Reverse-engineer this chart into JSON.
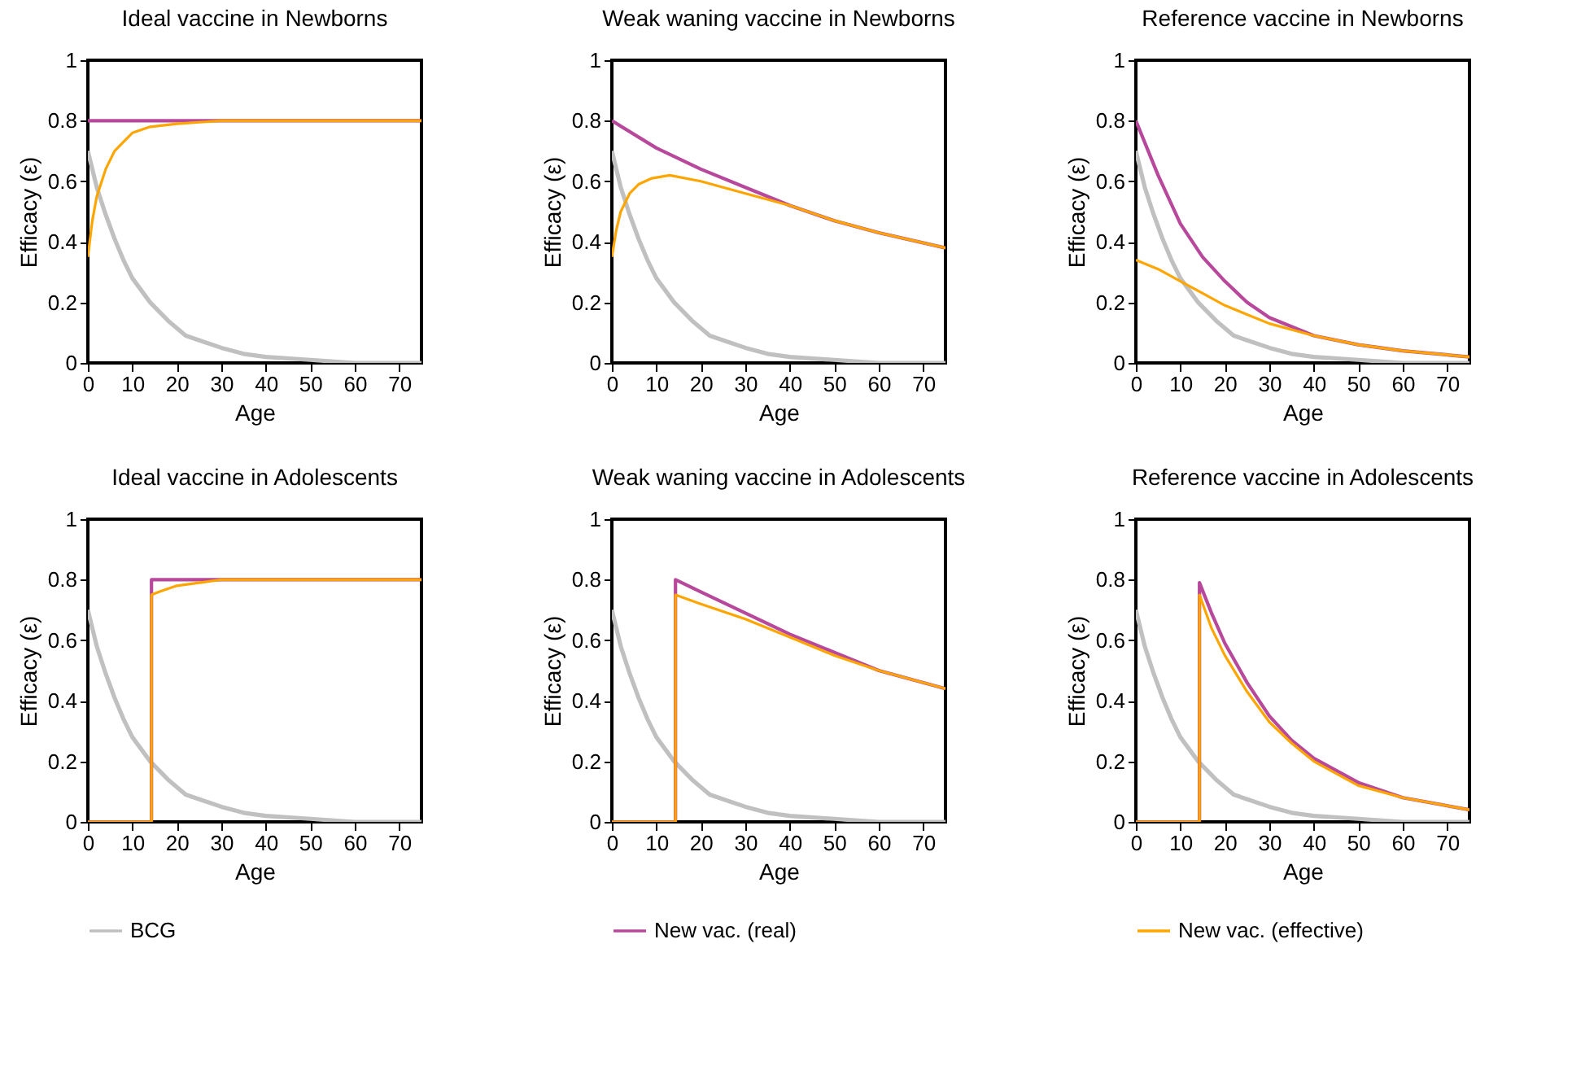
{
  "chart_data": [
    {
      "type": "line",
      "title": "Ideal vaccine in Newborns",
      "xlabel": "Age",
      "ylabel": "Efficacy (ε)",
      "xlim": [
        0,
        75
      ],
      "xticks": [
        0,
        10,
        20,
        30,
        40,
        50,
        60,
        70
      ],
      "ylim": [
        0,
        1
      ],
      "yticks": [
        0,
        0.2,
        0.4,
        0.6,
        0.8,
        1
      ],
      "series": [
        {
          "color": "#c0c0c0",
          "x": [
            0,
            2,
            4,
            6,
            8,
            10,
            14,
            18,
            22,
            26,
            30,
            35,
            40,
            50,
            60,
            75
          ],
          "values": [
            0.7,
            0.58,
            0.49,
            0.41,
            0.34,
            0.28,
            0.2,
            0.14,
            0.09,
            0.07,
            0.05,
            0.03,
            0.02,
            0.01,
            0,
            0
          ]
        },
        {
          "color": "#b8489b",
          "x": [
            0,
            75
          ],
          "values": [
            0.8,
            0.8
          ]
        },
        {
          "color": "#ffa500",
          "x": [
            0,
            1,
            2,
            4,
            6,
            8,
            10,
            14,
            20,
            30,
            75
          ],
          "values": [
            0.35,
            0.47,
            0.55,
            0.64,
            0.7,
            0.73,
            0.76,
            0.78,
            0.79,
            0.8,
            0.8
          ]
        }
      ]
    },
    {
      "type": "line",
      "title": "Weak waning vaccine in Newborns",
      "xlabel": "Age",
      "ylabel": "Efficacy (ε)",
      "xlim": [
        0,
        75
      ],
      "xticks": [
        0,
        10,
        20,
        30,
        40,
        50,
        60,
        70
      ],
      "ylim": [
        0,
        1
      ],
      "yticks": [
        0,
        0.2,
        0.4,
        0.6,
        0.8,
        1
      ],
      "series": [
        {
          "color": "#c0c0c0",
          "x": [
            0,
            2,
            4,
            6,
            8,
            10,
            14,
            18,
            22,
            26,
            30,
            35,
            40,
            50,
            60,
            75
          ],
          "values": [
            0.7,
            0.58,
            0.49,
            0.41,
            0.34,
            0.28,
            0.2,
            0.14,
            0.09,
            0.07,
            0.05,
            0.03,
            0.02,
            0.01,
            0,
            0
          ]
        },
        {
          "color": "#b8489b",
          "x": [
            0,
            10,
            20,
            30,
            40,
            50,
            60,
            75
          ],
          "values": [
            0.8,
            0.71,
            0.64,
            0.58,
            0.52,
            0.47,
            0.43,
            0.38
          ]
        },
        {
          "color": "#ffa500",
          "x": [
            0,
            1,
            2,
            4,
            6,
            9,
            13,
            20,
            30,
            40,
            50,
            60,
            75
          ],
          "values": [
            0.35,
            0.44,
            0.5,
            0.56,
            0.59,
            0.61,
            0.62,
            0.6,
            0.56,
            0.52,
            0.47,
            0.43,
            0.38
          ]
        }
      ]
    },
    {
      "type": "line",
      "title": "Reference vaccine in Newborns",
      "xlabel": "Age",
      "ylabel": "Efficacy (ε)",
      "xlim": [
        0,
        75
      ],
      "xticks": [
        0,
        10,
        20,
        30,
        40,
        50,
        60,
        70
      ],
      "ylim": [
        0,
        1
      ],
      "yticks": [
        0,
        0.2,
        0.4,
        0.6,
        0.8,
        1
      ],
      "series": [
        {
          "color": "#c0c0c0",
          "x": [
            0,
            2,
            4,
            6,
            8,
            10,
            14,
            18,
            22,
            26,
            30,
            35,
            40,
            50,
            60,
            75
          ],
          "values": [
            0.7,
            0.58,
            0.49,
            0.41,
            0.34,
            0.28,
            0.2,
            0.14,
            0.09,
            0.07,
            0.05,
            0.03,
            0.02,
            0.01,
            0,
            0
          ]
        },
        {
          "color": "#b8489b",
          "x": [
            0,
            5,
            10,
            15,
            20,
            25,
            30,
            40,
            50,
            60,
            75
          ],
          "values": [
            0.8,
            0.62,
            0.46,
            0.35,
            0.27,
            0.2,
            0.15,
            0.09,
            0.06,
            0.04,
            0.02
          ]
        },
        {
          "color": "#ffa500",
          "x": [
            0,
            5,
            10,
            15,
            20,
            30,
            40,
            50,
            60,
            75
          ],
          "values": [
            0.34,
            0.31,
            0.27,
            0.23,
            0.19,
            0.13,
            0.09,
            0.06,
            0.04,
            0.02
          ]
        }
      ]
    },
    {
      "type": "line",
      "title": "Ideal vaccine in Adolescents",
      "xlabel": "Age",
      "ylabel": "Efficacy (ε)",
      "xlim": [
        0,
        75
      ],
      "xticks": [
        0,
        10,
        20,
        30,
        40,
        50,
        60,
        70
      ],
      "ylim": [
        0,
        1
      ],
      "yticks": [
        0,
        0.2,
        0.4,
        0.6,
        0.8,
        1
      ],
      "legend": "bottom",
      "series": [
        {
          "name": "BCG",
          "color": "#c0c0c0",
          "x": [
            0,
            2,
            4,
            6,
            8,
            10,
            14,
            18,
            22,
            26,
            30,
            35,
            40,
            50,
            60,
            75
          ],
          "values": [
            0.7,
            0.58,
            0.49,
            0.41,
            0.34,
            0.28,
            0.2,
            0.14,
            0.09,
            0.07,
            0.05,
            0.03,
            0.02,
            0.01,
            0,
            0
          ]
        },
        {
          "color": "#b8489b",
          "x": [
            0,
            14.3,
            14.3,
            75
          ],
          "values": [
            0,
            0,
            0.8,
            0.8
          ]
        },
        {
          "color": "#ffa500",
          "x": [
            0,
            14.3,
            14.3,
            16,
            20,
            25,
            30,
            75
          ],
          "values": [
            0,
            0,
            0.75,
            0.76,
            0.78,
            0.79,
            0.8,
            0.8
          ]
        }
      ]
    },
    {
      "type": "line",
      "title": "Weak waning vaccine in Adolescents",
      "xlabel": "Age",
      "ylabel": "Efficacy (ε)",
      "xlim": [
        0,
        75
      ],
      "xticks": [
        0,
        10,
        20,
        30,
        40,
        50,
        60,
        70
      ],
      "ylim": [
        0,
        1
      ],
      "yticks": [
        0,
        0.2,
        0.4,
        0.6,
        0.8,
        1
      ],
      "legend": "bottom",
      "series": [
        {
          "color": "#c0c0c0",
          "x": [
            0,
            2,
            4,
            6,
            8,
            10,
            14,
            18,
            22,
            26,
            30,
            35,
            40,
            50,
            60,
            75
          ],
          "values": [
            0.7,
            0.58,
            0.49,
            0.41,
            0.34,
            0.28,
            0.2,
            0.14,
            0.09,
            0.07,
            0.05,
            0.03,
            0.02,
            0.01,
            0,
            0
          ]
        },
        {
          "name": "New vac. (real)",
          "color": "#b8489b",
          "x": [
            0,
            14.3,
            14.3,
            20,
            30,
            40,
            50,
            60,
            75
          ],
          "values": [
            0,
            0,
            0.8,
            0.76,
            0.69,
            0.62,
            0.56,
            0.5,
            0.44
          ]
        },
        {
          "color": "#ffa500",
          "x": [
            0,
            14.3,
            14.3,
            20,
            30,
            40,
            50,
            60,
            75
          ],
          "values": [
            0,
            0,
            0.75,
            0.72,
            0.67,
            0.61,
            0.55,
            0.5,
            0.44
          ]
        }
      ]
    },
    {
      "type": "line",
      "title": "Reference vaccine in Adolescents",
      "xlabel": "Age",
      "ylabel": "Efficacy (ε)",
      "xlim": [
        0,
        75
      ],
      "xticks": [
        0,
        10,
        20,
        30,
        40,
        50,
        60,
        70
      ],
      "ylim": [
        0,
        1
      ],
      "yticks": [
        0,
        0.2,
        0.4,
        0.6,
        0.8,
        1
      ],
      "legend": "bottom",
      "series": [
        {
          "color": "#c0c0c0",
          "x": [
            0,
            2,
            4,
            6,
            8,
            10,
            14,
            18,
            22,
            26,
            30,
            35,
            40,
            50,
            60,
            75
          ],
          "values": [
            0.7,
            0.58,
            0.49,
            0.41,
            0.34,
            0.28,
            0.2,
            0.14,
            0.09,
            0.07,
            0.05,
            0.03,
            0.02,
            0.01,
            0,
            0
          ]
        },
        {
          "color": "#b8489b",
          "x": [
            0,
            14.3,
            14.3,
            17,
            20,
            25,
            30,
            35,
            40,
            50,
            60,
            75
          ],
          "values": [
            0,
            0,
            0.79,
            0.69,
            0.59,
            0.46,
            0.35,
            0.27,
            0.21,
            0.13,
            0.08,
            0.04
          ]
        },
        {
          "name": "New vac. (effective)",
          "color": "#ffa500",
          "x": [
            0,
            14.3,
            14.3,
            17,
            20,
            25,
            30,
            35,
            40,
            50,
            60,
            75
          ],
          "values": [
            0,
            0,
            0.75,
            0.64,
            0.55,
            0.43,
            0.33,
            0.26,
            0.2,
            0.12,
            0.08,
            0.04
          ]
        }
      ]
    }
  ]
}
